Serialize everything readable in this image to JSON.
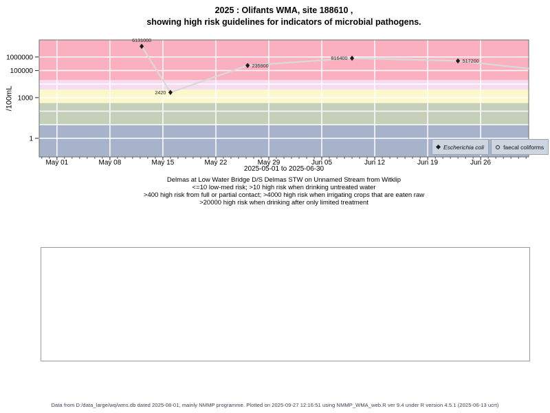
{
  "title": {
    "line1": "2025 : Olifants WMA, site 188610 ,",
    "line2": "showing high risk guidelines for indicators of microbial pathogens."
  },
  "chart_data": {
    "type": "line",
    "title": "2025 : Olifants WMA, site 188610 , showing high risk guidelines for indicators of microbial pathogens.",
    "ylabel": "/100mL",
    "xlabel": "2025-05-01 to 2025-06-30",
    "y_axis": {
      "scale": "log10",
      "range": [
        0.042,
        18200000
      ],
      "tick_values": [
        1000000,
        100000,
        1000,
        1
      ],
      "tick_labels": [
        "1000000",
        "100000",
        "1000",
        "1"
      ],
      "gridline_values": [
        1,
        10,
        100,
        1000,
        10000,
        100000,
        1000000
      ]
    },
    "x_axis": {
      "range_days": [
        -2.35,
        62.35
      ],
      "epoch": "2025-05-01",
      "tick_days": [
        0,
        7,
        14,
        21,
        28,
        35,
        42,
        49,
        56
      ],
      "tick_labels": [
        "May 01",
        "May 08",
        "May 15",
        "May 22",
        "May 29",
        "Jun 05",
        "Jun 12",
        "Jun 19",
        "Jun 26"
      ],
      "minor_tick_interval_days": 1
    },
    "bands": [
      {
        "label": "low-med risk <=10",
        "min": null,
        "max": 10,
        "color": "#a6b3ca"
      },
      {
        "label": "high risk when drinking untreated water >10",
        "min": 10,
        "max": 400,
        "color": "#c5cfb9"
      },
      {
        "label": "high risk from full or partial contact >400",
        "min": 400,
        "max": 4000,
        "color": "#fbf8cb"
      },
      {
        "label": "high risk when irrigating crops that are eaten raw >4000",
        "min": 4000,
        "max": 20000,
        "color": "#f7dbf0"
      },
      {
        "label": "high risk when drinking after only limited treatment >20000",
        "min": 20000,
        "max": null,
        "color": "#fbb0c0"
      }
    ],
    "series": [
      {
        "name": "Escherichia coli",
        "marker": "filled-diamond",
        "line_color": "#d9d9d9",
        "marker_color": "#1c1c1c",
        "points": [
          {
            "approx_date": "2025-05-12",
            "day": 11.2,
            "value": 6131000,
            "label": "6131000",
            "label_pos": "above"
          },
          {
            "approx_date": "2025-05-16",
            "day": 15.0,
            "value": 2420,
            "label": "2420",
            "label_pos": "left"
          },
          {
            "approx_date": "2025-05-26",
            "day": 25.2,
            "value": 235900,
            "label": "235900",
            "label_pos": "right"
          },
          {
            "approx_date": "2025-06-09",
            "day": 39.0,
            "value": 816400,
            "label": "816400",
            "label_pos": "left"
          },
          {
            "approx_date": "2025-06-23",
            "day": 53.0,
            "value": 517200,
            "label": "517200",
            "label_pos": "right"
          }
        ],
        "tail": {
          "day": 62.35,
          "value": 140000
        }
      },
      {
        "name": "faecal coliforms",
        "marker": "open-circle",
        "points": []
      }
    ],
    "legend": {
      "position": "bottom-right",
      "entries": [
        {
          "marker": "filled-diamond",
          "label": "Escherichia coli",
          "italic": true
        },
        {
          "marker": "open-circle",
          "label": "faecal coliforms",
          "italic": false
        }
      ]
    },
    "grid": {
      "color": "#ffffff",
      "on": true
    }
  },
  "subtitle_lines": [
    "Delmas at Low Water Bridge D/S Delmas STW on Unnamed Stream from Witklip",
    "<=10 low-med risk; >10 high risk when drinking untreated water",
    ">400 high risk from full or partial contact; >4000 high risk when irrigating crops that are eaten raw",
    ">20000 high risk when drinking after only limited treatment"
  ],
  "footer": {
    "text": "Data from D:/data_large/wq/wms.db dated 2025-08-01, mainly NMMP programme. Plotted on 2025-09-27 12:16:51 using NMMP_WMA_web.R ver 9.4 under R version 4.5.1 (2025-06-13 ucrt)"
  }
}
